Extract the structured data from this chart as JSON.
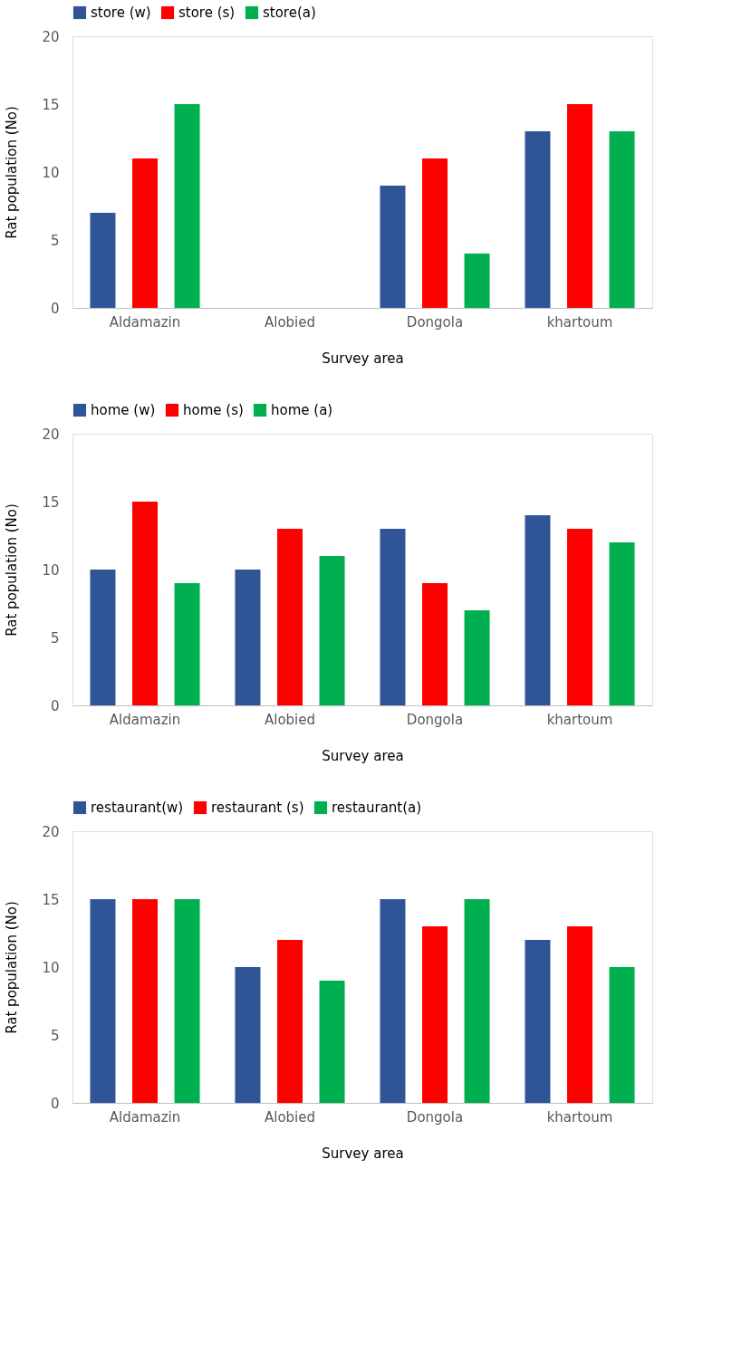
{
  "chart_data": [
    {
      "type": "bar",
      "xlabel": "Survey area",
      "ylabel": "Rat population (No)",
      "categories": [
        "Aldamazin",
        "Alobied",
        "Dongola",
        "khartoum"
      ],
      "ylim": [
        0,
        20
      ],
      "yticks": [
        0,
        5,
        10,
        15,
        20
      ],
      "grid": false,
      "legend": "top",
      "series": [
        {
          "name": "store (w)",
          "color": "#2f5597",
          "values": [
            7,
            0,
            9,
            13
          ]
        },
        {
          "name": "store (s)",
          "color": "#ff0000",
          "values": [
            11,
            0,
            11,
            15
          ]
        },
        {
          "name": "store(a)",
          "color": "#00b050",
          "values": [
            15,
            0,
            4,
            13
          ]
        }
      ]
    },
    {
      "type": "bar",
      "xlabel": "Survey area",
      "ylabel": "Rat population (No)",
      "categories": [
        "Aldamazin",
        "Alobied",
        "Dongola",
        "khartoum"
      ],
      "ylim": [
        0,
        20
      ],
      "yticks": [
        0,
        5,
        10,
        15,
        20
      ],
      "grid": false,
      "legend": "top",
      "series": [
        {
          "name": "home (w)",
          "color": "#2f5597",
          "values": [
            10,
            10,
            13,
            14
          ]
        },
        {
          "name": "home (s)",
          "color": "#ff0000",
          "values": [
            15,
            13,
            9,
            13
          ]
        },
        {
          "name": "home (a)",
          "color": "#00b050",
          "values": [
            9,
            11,
            7,
            12
          ]
        }
      ]
    },
    {
      "type": "bar",
      "xlabel": "Survey area",
      "ylabel": "Rat population (No)",
      "categories": [
        "Aldamazin",
        "Alobied",
        "Dongola",
        "khartoum"
      ],
      "ylim": [
        0,
        20
      ],
      "yticks": [
        0,
        5,
        10,
        15,
        20
      ],
      "grid": false,
      "legend": "top",
      "series": [
        {
          "name": "restaurant(w)",
          "color": "#2f5597",
          "values": [
            15,
            10,
            15,
            12
          ]
        },
        {
          "name": "restaurant (s)",
          "color": "#ff0000",
          "values": [
            15,
            12,
            13,
            13
          ]
        },
        {
          "name": "restaurant(a)",
          "color": "#00b050",
          "values": [
            15,
            9,
            15,
            10
          ]
        }
      ]
    }
  ]
}
